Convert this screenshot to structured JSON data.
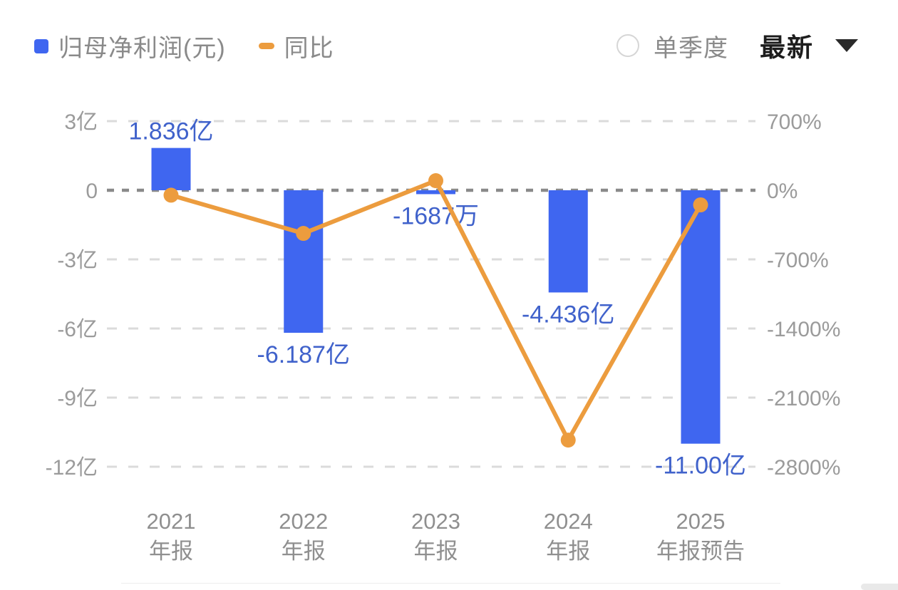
{
  "legend": {
    "profit_label": "归母净利润(元)",
    "yoy_label": "同比"
  },
  "controls": {
    "quarter_label": "单季度",
    "period_selector": "最新",
    "chevron_icon": "caret-down"
  },
  "colors": {
    "bar": "#3F66F0",
    "line": "#EC9C3E",
    "value_label": "#4062CB",
    "axis_text": "#9B9B9B",
    "x_label_text": "#8F8F8F",
    "zero_line": "#8A8A8A",
    "grid_line": "#DBDBDB"
  },
  "chart_data": {
    "type": "bar",
    "subtype": "bar+line combo, dual y-axis",
    "categories": [
      [
        "2021",
        "年报"
      ],
      [
        "2022",
        "年报"
      ],
      [
        "2023",
        "年报"
      ],
      [
        "2024",
        "年报"
      ],
      [
        "2025",
        "年报预告"
      ]
    ],
    "series": [
      {
        "name": "归母净利润(元)",
        "type": "bar",
        "axis": "left",
        "unit": "亿元",
        "values": [
          1.836,
          -6.187,
          -0.1687,
          -4.436,
          -11.0
        ],
        "labels": [
          "1.836亿",
          "-6.187亿",
          "-1687万",
          "-4.436亿",
          "-11.00亿"
        ]
      },
      {
        "name": "同比",
        "type": "line",
        "axis": "right",
        "unit": "%",
        "values": [
          -50,
          -437,
          97,
          -2530,
          -148
        ]
      }
    ],
    "left_axis": {
      "max": 3,
      "min": -12,
      "ticks": [
        {
          "label": "3亿",
          "value": 3
        },
        {
          "label": "0",
          "value": 0
        },
        {
          "label": "-3亿",
          "value": -3
        },
        {
          "label": "-6亿",
          "value": -6
        },
        {
          "label": "-9亿",
          "value": -9
        },
        {
          "label": "-12亿",
          "value": -12
        }
      ]
    },
    "right_axis": {
      "max": 700,
      "min": -2800,
      "ticks": [
        {
          "label": "700%",
          "value": 700
        },
        {
          "label": "0%",
          "value": 0
        },
        {
          "label": "-700%",
          "value": -700
        },
        {
          "label": "-1400%",
          "value": -1400
        },
        {
          "label": "-2100%",
          "value": -2100
        },
        {
          "label": "-2800%",
          "value": -2800
        }
      ]
    },
    "grid": true,
    "grid_style": "dashed horizontal",
    "legend_position": "top-left"
  }
}
